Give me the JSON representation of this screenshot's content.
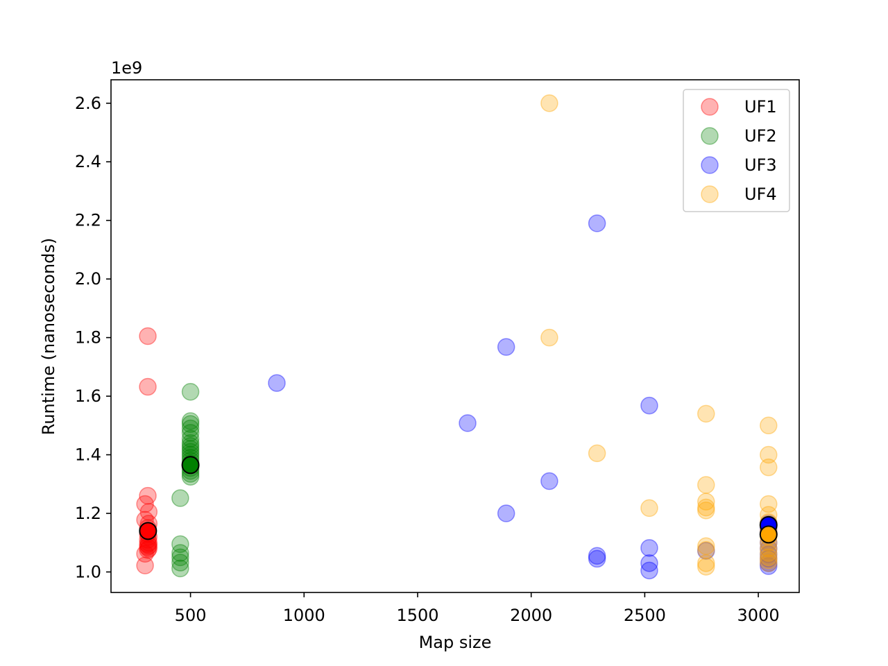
{
  "chart_data": {
    "type": "scatter",
    "title": "",
    "xlabel": "Map size",
    "ylabel": "Runtime (nanoseconds)",
    "y_offset_text": "1e9",
    "xlim": [
      150,
      3180
    ],
    "ylim": [
      0.93,
      2.68
    ],
    "x_ticks": [
      500,
      1000,
      1500,
      2000,
      2500,
      3000
    ],
    "y_ticks": [
      1.0,
      1.2,
      1.4,
      1.6,
      1.8,
      2.0,
      2.2,
      2.4,
      2.6
    ],
    "y_tick_labels": [
      "1.0",
      "1.2",
      "1.4",
      "1.6",
      "1.8",
      "2.0",
      "2.2",
      "2.4",
      "2.6"
    ],
    "x_tick_labels": [
      "500",
      "1000",
      "1500",
      "2000",
      "2500",
      "3000"
    ],
    "grid": false,
    "legend_position": "top-right",
    "point_alpha": 0.3,
    "series": [
      {
        "name": "UF1",
        "color": "#ff0000",
        "points": [
          [
            312,
            1.805
          ],
          [
            312,
            1.632
          ],
          [
            312,
            1.26
          ],
          [
            300,
            1.232
          ],
          [
            316,
            1.205
          ],
          [
            300,
            1.178
          ],
          [
            316,
            1.165
          ],
          [
            312,
            1.15
          ],
          [
            312,
            1.13
          ],
          [
            316,
            1.12
          ],
          [
            312,
            1.11
          ],
          [
            316,
            1.1
          ],
          [
            312,
            1.095
          ],
          [
            316,
            1.09
          ],
          [
            312,
            1.085
          ],
          [
            316,
            1.08
          ],
          [
            312,
            1.075
          ],
          [
            300,
            1.062
          ],
          [
            300,
            1.022
          ]
        ],
        "mean": [
          313,
          1.14
        ]
      },
      {
        "name": "UF2",
        "color": "#008000",
        "points": [
          [
            500,
            1.615
          ],
          [
            500,
            1.515
          ],
          [
            500,
            1.505
          ],
          [
            500,
            1.49
          ],
          [
            500,
            1.475
          ],
          [
            500,
            1.455
          ],
          [
            500,
            1.44
          ],
          [
            500,
            1.43
          ],
          [
            500,
            1.42
          ],
          [
            500,
            1.41
          ],
          [
            500,
            1.4
          ],
          [
            500,
            1.39
          ],
          [
            500,
            1.38
          ],
          [
            500,
            1.37
          ],
          [
            500,
            1.355
          ],
          [
            500,
            1.345
          ],
          [
            500,
            1.335
          ],
          [
            500,
            1.325
          ],
          [
            455,
            1.252
          ],
          [
            455,
            1.095
          ],
          [
            455,
            1.065
          ],
          [
            455,
            1.05
          ],
          [
            455,
            1.032
          ],
          [
            455,
            1.012
          ]
        ],
        "mean": [
          500,
          1.365
        ]
      },
      {
        "name": "UF3",
        "color": "#0000ff",
        "points": [
          [
            2290,
            2.19
          ],
          [
            1890,
            1.768
          ],
          [
            880,
            1.645
          ],
          [
            2520,
            1.568
          ],
          [
            1720,
            1.508
          ],
          [
            2080,
            1.31
          ],
          [
            1890,
            1.2
          ],
          [
            3045,
            1.165
          ],
          [
            3045,
            1.15
          ],
          [
            3045,
            1.135
          ],
          [
            3045,
            1.1
          ],
          [
            3045,
            1.08
          ],
          [
            3045,
            1.06
          ],
          [
            3045,
            1.045
          ],
          [
            3045,
            1.03
          ],
          [
            3045,
            1.02
          ],
          [
            2520,
            1.082
          ],
          [
            2770,
            1.072
          ],
          [
            2290,
            1.055
          ],
          [
            2290,
            1.045
          ],
          [
            2520,
            1.03
          ],
          [
            2520,
            1.005
          ]
        ],
        "mean": [
          3045,
          1.16
        ]
      },
      {
        "name": "UF4",
        "color": "#ffa500",
        "points": [
          [
            2080,
            2.6
          ],
          [
            2080,
            1.8
          ],
          [
            2770,
            1.54
          ],
          [
            3045,
            1.5
          ],
          [
            3045,
            1.4
          ],
          [
            2290,
            1.405
          ],
          [
            3045,
            1.357
          ],
          [
            2770,
            1.297
          ],
          [
            2770,
            1.24
          ],
          [
            3045,
            1.232
          ],
          [
            2770,
            1.22
          ],
          [
            2520,
            1.218
          ],
          [
            2770,
            1.21
          ],
          [
            3045,
            1.195
          ],
          [
            3045,
            1.17
          ],
          [
            3045,
            1.14
          ],
          [
            3045,
            1.12
          ],
          [
            3045,
            1.1
          ],
          [
            2770,
            1.088
          ],
          [
            2770,
            1.075
          ],
          [
            3045,
            1.08
          ],
          [
            3045,
            1.065
          ],
          [
            3045,
            1.05
          ],
          [
            3045,
            1.04
          ],
          [
            3045,
            1.03
          ],
          [
            2770,
            1.03
          ],
          [
            2770,
            1.018
          ]
        ],
        "mean": [
          3045,
          1.128
        ]
      }
    ]
  }
}
